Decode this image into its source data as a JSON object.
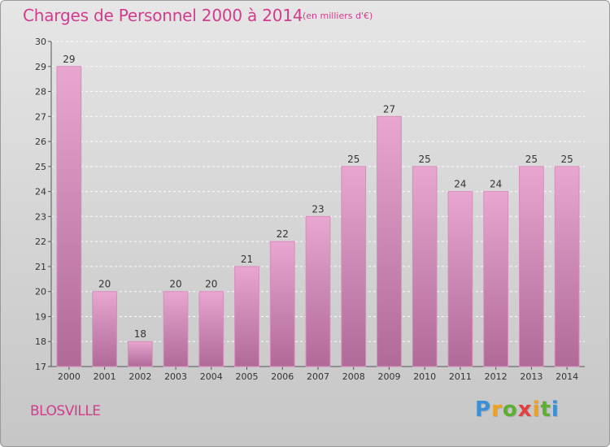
{
  "title": "Charges de Personnel 2000 à 2014",
  "subtitle": "(en milliers d'€)",
  "commune": "BLOSVILLE",
  "logo": {
    "letters": [
      "P",
      "r",
      "o",
      "x",
      "i",
      "t",
      "i"
    ],
    "colors": [
      "#3a8fd6",
      "#f0a020",
      "#5cb030",
      "#e04040",
      "#f0a020",
      "#5cb030",
      "#3a8fd6"
    ]
  },
  "colors": {
    "bar_top": "#e8a6d0",
    "bar_bottom": "#b06a98",
    "bar_edge": "#d88cbc",
    "text_accent": "#d23c8c"
  },
  "chart_data": {
    "type": "bar",
    "categories": [
      "2000",
      "2001",
      "2002",
      "2003",
      "2004",
      "2005",
      "2006",
      "2007",
      "2008",
      "2009",
      "2010",
      "2011",
      "2012",
      "2013",
      "2014"
    ],
    "values": [
      29,
      20,
      18,
      20,
      20,
      21,
      22,
      23,
      25,
      27,
      25,
      24,
      24,
      25,
      25
    ],
    "ylim": [
      17,
      30
    ],
    "yticks": [
      17,
      18,
      19,
      20,
      21,
      22,
      23,
      24,
      25,
      26,
      27,
      28,
      29,
      30
    ],
    "grid": true,
    "xlabel": "",
    "ylabel": ""
  }
}
